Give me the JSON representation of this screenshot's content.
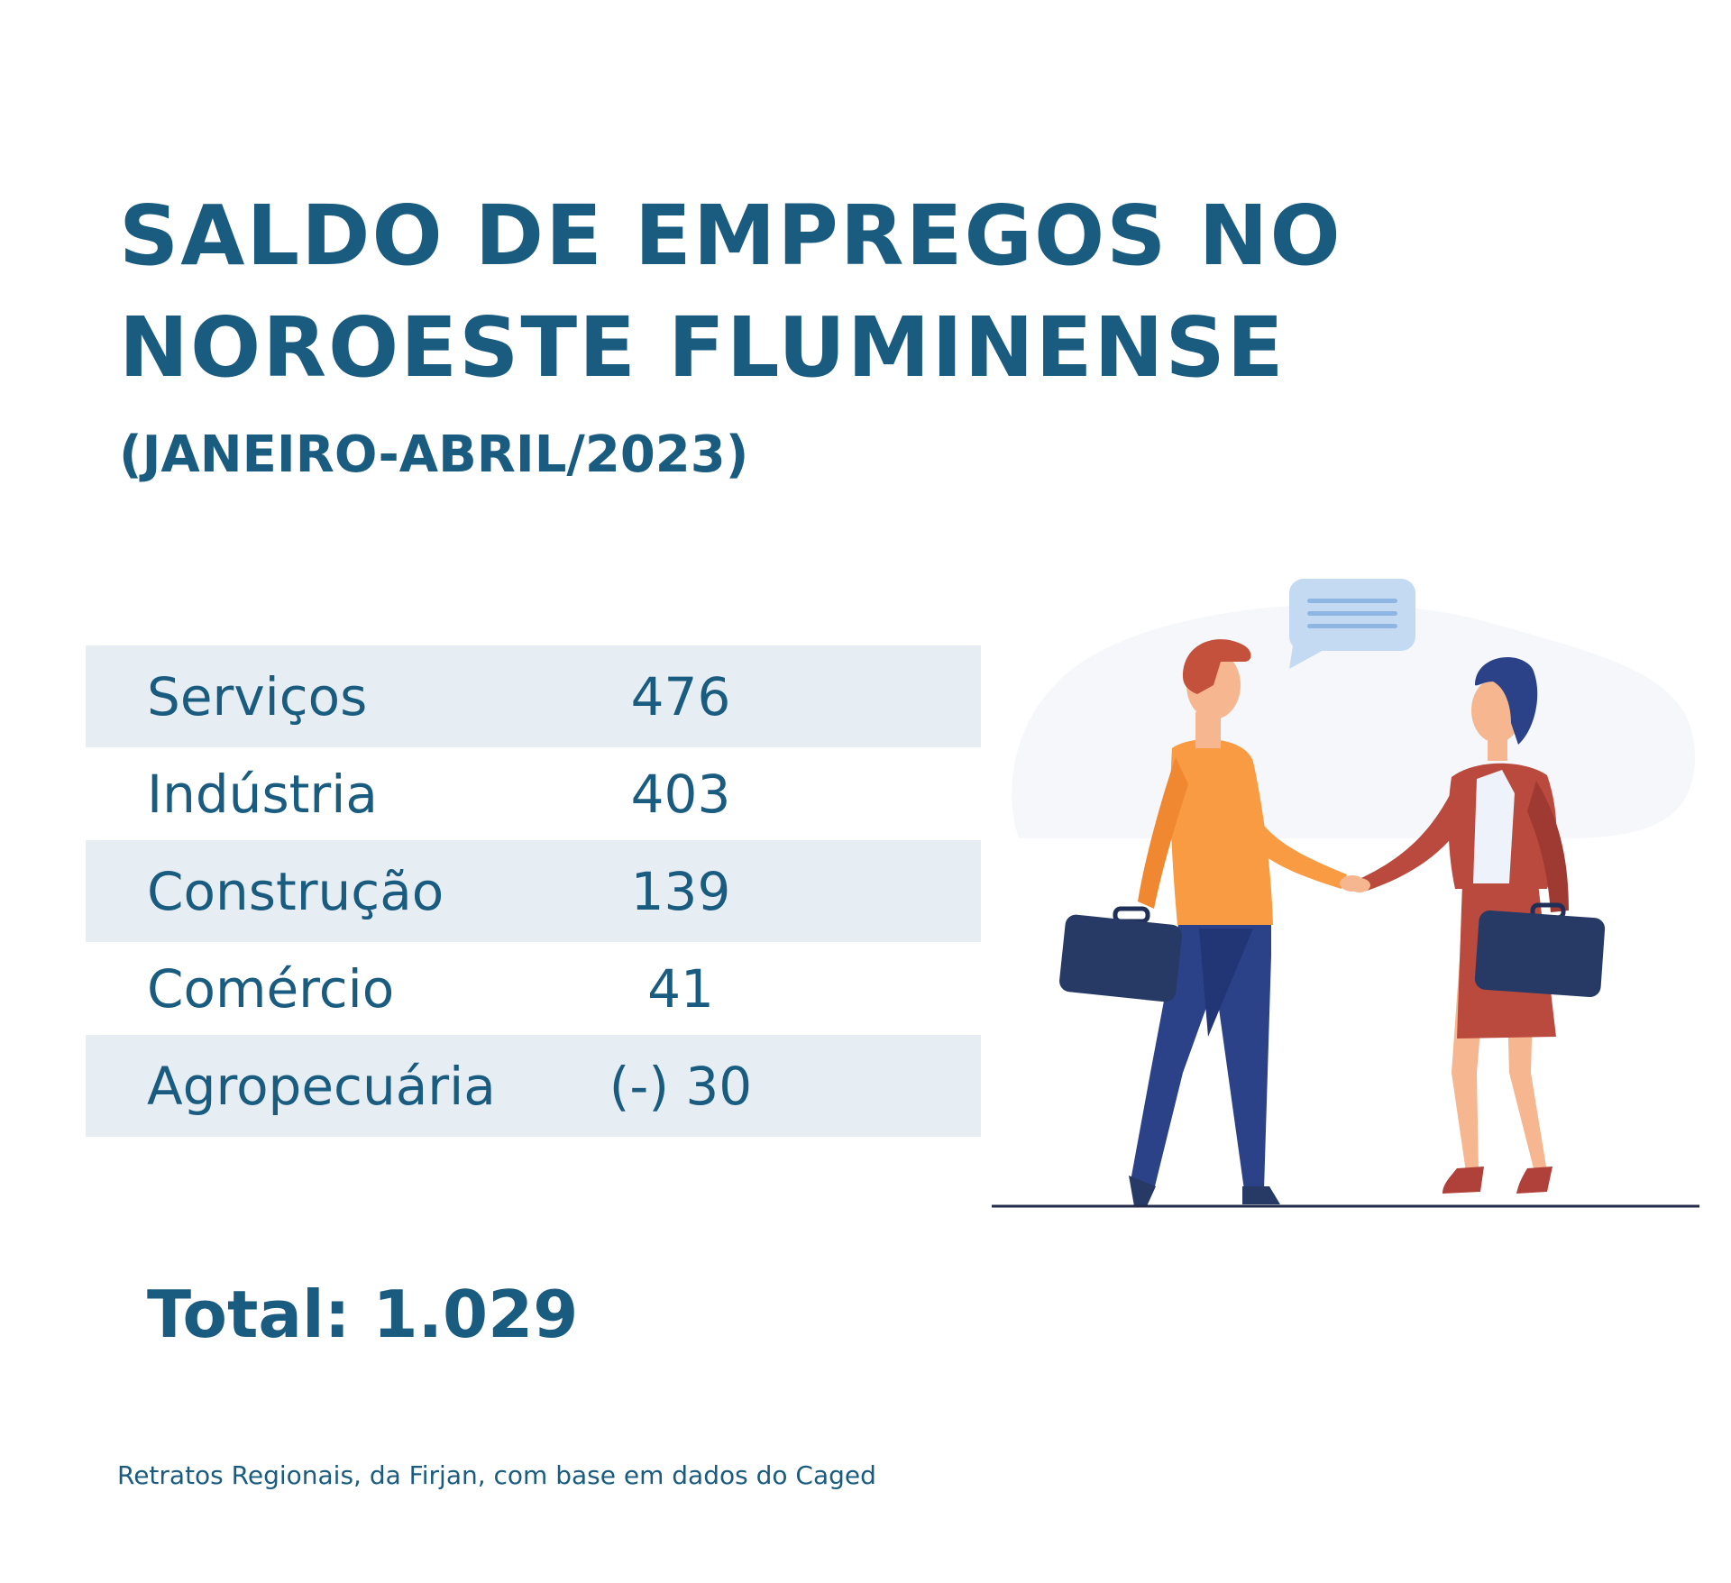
{
  "header": {
    "title_line1": "SALDO DE EMPREGOS NO",
    "title_line2": "NOROESTE FLUMINENSE",
    "subtitle": "(JANEIRO-ABRIL/2023)"
  },
  "table": {
    "rows": [
      {
        "label": "Serviços",
        "value": "476"
      },
      {
        "label": "Indústria",
        "value": "403"
      },
      {
        "label": "Construção",
        "value": "139"
      },
      {
        "label": "Comércio",
        "value": "41"
      },
      {
        "label": "Agropecuária",
        "value": "(-) 30"
      }
    ]
  },
  "total": "Total: 1.029",
  "source": "Retratos Regionais, da Firjan, com base em dados do Caged",
  "colors": {
    "primary": "#1a5c80",
    "row_shade": "#e7eef3"
  },
  "illustration": {
    "name": "handshake-illustration"
  }
}
